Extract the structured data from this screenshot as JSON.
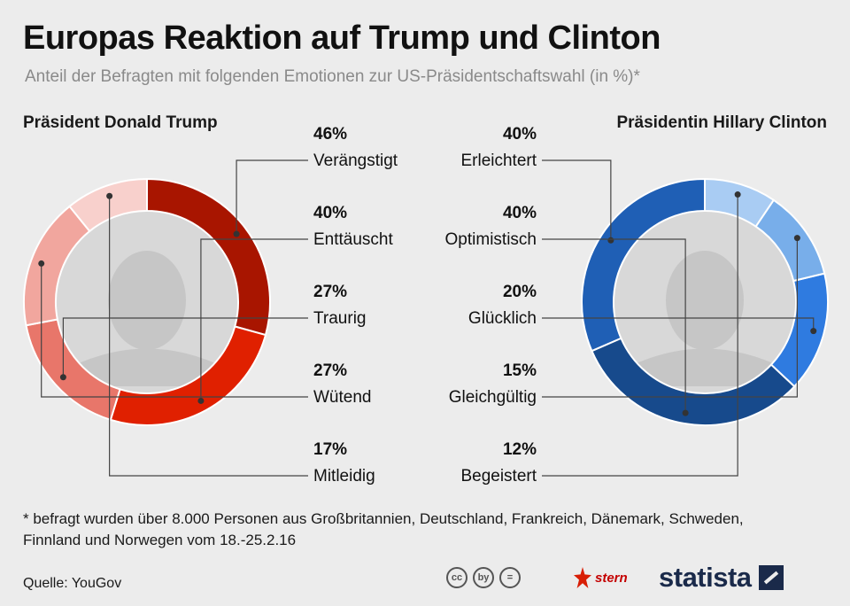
{
  "header": {
    "title": "Europas Reaktion auf Trump und Clinton",
    "subtitle": "Anteil der Befragten mit folgenden Emotionen zur US-Präsidentschaftswahl (in %)*"
  },
  "chart_data": [
    {
      "type": "pie",
      "title": "Präsident Donald Trump",
      "categories": [
        "Verängstigt",
        "Enttäuscht",
        "Traurig",
        "Wütend",
        "Mitleidig"
      ],
      "values": [
        46,
        40,
        27,
        27,
        17
      ],
      "value_labels": [
        "46%",
        "40%",
        "27%",
        "27%",
        "17%"
      ],
      "colors": [
        "#a81500",
        "#e02000",
        "#e8766a",
        "#f1a69e",
        "#f8d0cc"
      ],
      "style": "donut"
    },
    {
      "type": "pie",
      "title": "Präsidentin Hillary Clinton",
      "categories": [
        "Erleichtert",
        "Optimistisch",
        "Glücklich",
        "Gleichgültig",
        "Begeistert"
      ],
      "values": [
        40,
        40,
        20,
        15,
        12
      ],
      "value_labels": [
        "40%",
        "40%",
        "20%",
        "15%",
        "12%"
      ],
      "colors": [
        "#1f5fb5",
        "#174a8c",
        "#2f7be0",
        "#78aeea",
        "#a9ccf3"
      ],
      "style": "donut"
    }
  ],
  "footer": {
    "footnote": "* befragt wurden über 8.000 Personen aus Großbritannien, Deutschland, Frankreich, Dänemark, Schweden, Finnland und Norwegen vom 18.-25.2.16",
    "source": "Quelle: YouGov",
    "license_icons": [
      "cc",
      "by",
      "="
    ],
    "logos": [
      "stern",
      "statista"
    ]
  }
}
